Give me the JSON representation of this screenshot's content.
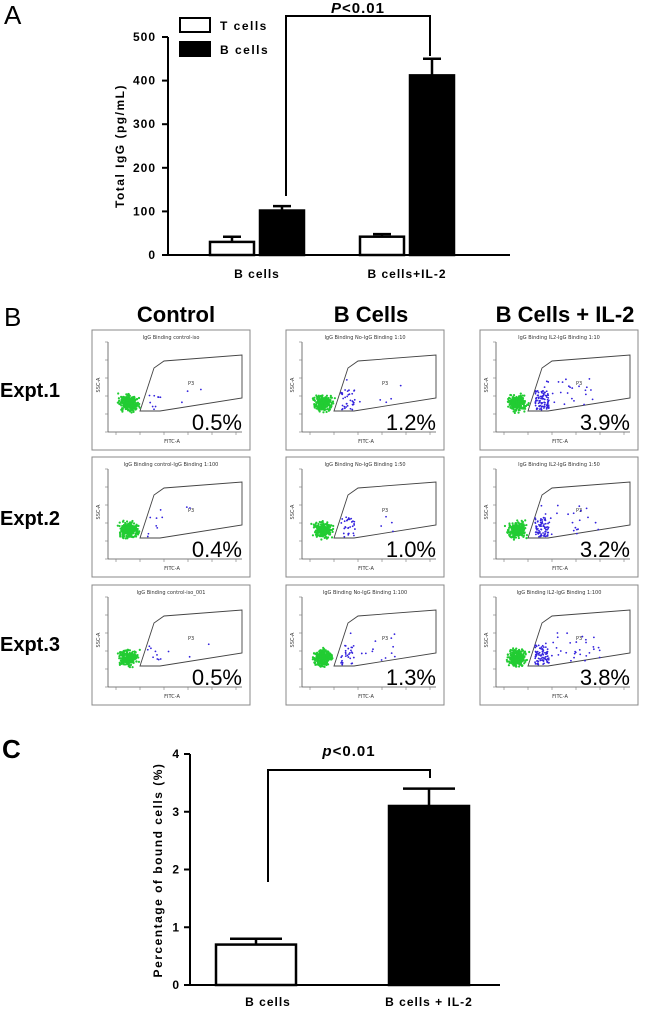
{
  "panel_a": {
    "letter": "A",
    "significance": {
      "italic": "P",
      "rest": "<0.01"
    },
    "chart_data": {
      "type": "bar",
      "categories": [
        "B cells",
        "B cells+IL-2"
      ],
      "series": [
        {
          "name": "T cells",
          "values": [
            30,
            42
          ],
          "errors": [
            12,
            6
          ],
          "fill": "#ffffff"
        },
        {
          "name": "B cells",
          "values": [
            102,
            412
          ],
          "errors": [
            10,
            38
          ],
          "fill": "#000000"
        }
      ],
      "title": "",
      "xlabel": "",
      "ylabel": "Total IgG (pg/mL)",
      "ylim": [
        0,
        500
      ],
      "yticks": [
        0,
        100,
        200,
        300,
        400,
        500
      ],
      "legend": "top-left"
    }
  },
  "panel_b": {
    "letter": "B",
    "columns": [
      "Control",
      "B Cells",
      "B Cells + IL-2"
    ],
    "rows": [
      "Expt.1",
      "Expt.2",
      "Expt.3"
    ],
    "gate_label": "P3",
    "x_axis_label": "FITC-A",
    "y_axis_label": "SSC-A",
    "plots": [
      [
        {
          "title": "IgG Binding control-iso",
          "value": "0.5%",
          "blue": 12
        },
        {
          "title": "IgG Binding No-IgG Binding 1:10",
          "value": "1.2%",
          "blue": 40
        },
        {
          "title": "IgG Binding IL2-IgG Binding 1:10",
          "value": "3.9%",
          "blue": 120
        }
      ],
      [
        {
          "title": "IgG Binding control-IgG Binding 1:100",
          "value": "0.4%",
          "blue": 10
        },
        {
          "title": "IgG Binding No-IgG Binding 1:50",
          "value": "1.0%",
          "blue": 35
        },
        {
          "title": "IgG Binding IL2-IgG Binding 1:50",
          "value": "3.2%",
          "blue": 100
        }
      ],
      [
        {
          "title": "IgG Binding control-iso_001",
          "value": "0.5%",
          "blue": 12
        },
        {
          "title": "IgG Binding No-IgG Binding 1:100",
          "value": "1.3%",
          "blue": 42
        },
        {
          "title": "IgG Binding IL2-IgG Binding 1:100",
          "value": "3.8%",
          "blue": 115
        }
      ]
    ],
    "colors": {
      "negative": "#22cc33",
      "positive": "#3322dd"
    }
  },
  "panel_c": {
    "letter": "C",
    "significance": {
      "italic": "p",
      "rest": "<0.01"
    },
    "chart_data": {
      "type": "bar",
      "categories": [
        "B cells",
        "B cells + IL-2"
      ],
      "values": [
        0.7,
        3.1
      ],
      "errors": [
        0.1,
        0.3
      ],
      "fills": [
        "#ffffff",
        "#000000"
      ],
      "title": "",
      "xlabel": "",
      "ylabel": "Percentage of bound cells (%)",
      "ylim": [
        0,
        4
      ],
      "yticks": [
        0,
        1,
        2,
        3,
        4
      ]
    }
  }
}
